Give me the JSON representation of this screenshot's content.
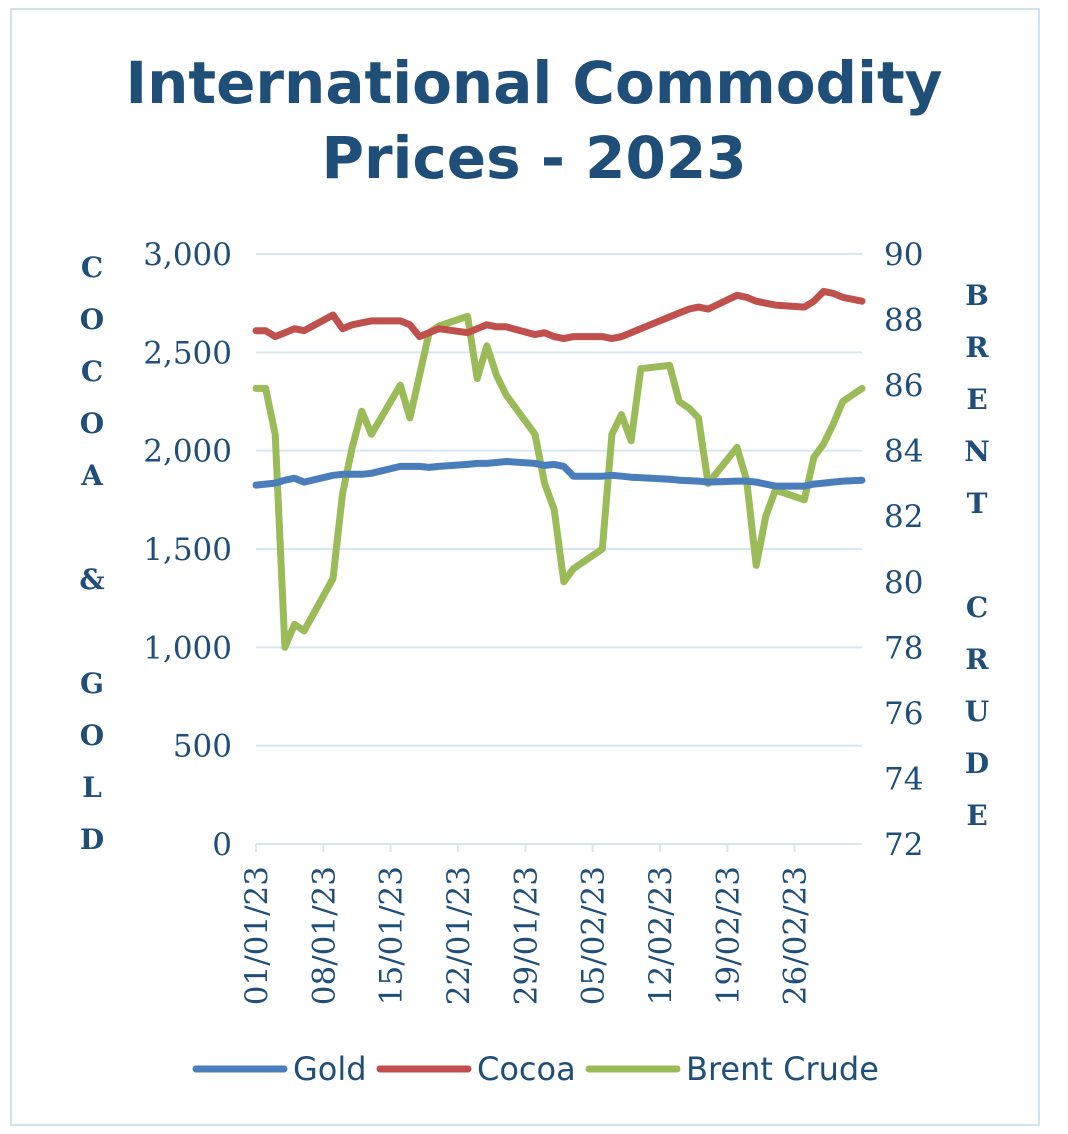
{
  "chart_data": {
    "type": "line",
    "title": "International Commodity Prices - 2023",
    "title_lines": [
      "International Commodity",
      "Prices - 2023"
    ],
    "ylabel": "COCOA & GOLD",
    "y2label": "BRENT CRUDE",
    "ylim": [
      0,
      3000
    ],
    "y2lim": [
      72,
      90
    ],
    "yticks": [
      "0",
      "500",
      "1,000",
      "1,500",
      "2,000",
      "2,500",
      "3,000"
    ],
    "y2ticks": [
      "72",
      "74",
      "76",
      "78",
      "80",
      "82",
      "84",
      "86",
      "88",
      "90"
    ],
    "xlim": [
      "01/01/23",
      "05/03/23"
    ],
    "xticks": [
      "01/01/23",
      "08/01/23",
      "15/01/23",
      "22/01/23",
      "29/01/23",
      "05/02/23",
      "12/02/23",
      "19/02/23",
      "26/02/23"
    ],
    "grid": "horizontal",
    "legend_position": "bottom",
    "series": [
      {
        "name": "Gold",
        "axis": "left",
        "color": "#4a7ebb",
        "x": [
          "01/01/23",
          "02/01/23",
          "03/01/23",
          "04/01/23",
          "05/01/23",
          "06/01/23",
          "09/01/23",
          "10/01/23",
          "12/01/23",
          "13/01/23",
          "16/01/23",
          "18/01/23",
          "19/01/23",
          "20/01/23",
          "23/01/23",
          "24/01/23",
          "25/01/23",
          "26/01/23",
          "27/01/23",
          "30/01/23",
          "31/01/23",
          "01/02/23",
          "02/02/23",
          "03/02/23",
          "06/02/23",
          "07/02/23",
          "08/02/23",
          "09/02/23",
          "13/02/23",
          "14/02/23",
          "16/02/23",
          "17/02/23",
          "20/02/23",
          "21/02/23",
          "22/02/23",
          "24/02/23",
          "27/02/23",
          "28/02/23",
          "01/03/23",
          "02/03/23",
          "03/03/23",
          "05/03/23"
        ],
        "y": [
          1825,
          1830,
          1835,
          1850,
          1860,
          1840,
          1875,
          1880,
          1880,
          1885,
          1920,
          1920,
          1915,
          1920,
          1930,
          1935,
          1935,
          1940,
          1945,
          1935,
          1925,
          1930,
          1920,
          1870,
          1870,
          1875,
          1870,
          1865,
          1855,
          1850,
          1845,
          1840,
          1845,
          1845,
          1840,
          1820,
          1820,
          1830,
          1835,
          1840,
          1845,
          1850
        ]
      },
      {
        "name": "Cocoa",
        "axis": "left",
        "color": "#c0504d",
        "x": [
          "01/01/23",
          "02/01/23",
          "03/01/23",
          "04/01/23",
          "05/01/23",
          "06/01/23",
          "09/01/23",
          "10/01/23",
          "11/01/23",
          "12/01/23",
          "13/01/23",
          "16/01/23",
          "17/01/23",
          "18/01/23",
          "19/01/23",
          "20/01/23",
          "23/01/23",
          "24/01/23",
          "25/01/23",
          "26/01/23",
          "27/01/23",
          "30/01/23",
          "31/01/23",
          "01/02/23",
          "02/02/23",
          "03/02/23",
          "06/02/23",
          "07/02/23",
          "08/02/23",
          "09/02/23",
          "10/02/23",
          "13/02/23",
          "14/02/23",
          "15/02/23",
          "16/02/23",
          "17/02/23",
          "20/02/23",
          "21/02/23",
          "22/02/23",
          "23/02/23",
          "24/02/23",
          "27/02/23",
          "28/02/23",
          "01/03/23",
          "02/03/23",
          "03/03/23",
          "05/03/23"
        ],
        "y": [
          2610,
          2610,
          2580,
          2600,
          2620,
          2610,
          2690,
          2620,
          2640,
          2650,
          2660,
          2660,
          2640,
          2580,
          2600,
          2620,
          2600,
          2620,
          2640,
          2630,
          2630,
          2590,
          2600,
          2580,
          2570,
          2580,
          2580,
          2570,
          2580,
          2600,
          2620,
          2680,
          2700,
          2720,
          2730,
          2720,
          2790,
          2780,
          2760,
          2750,
          2740,
          2730,
          2760,
          2810,
          2800,
          2780,
          2760
        ]
      },
      {
        "name": "Brent Crude",
        "axis": "right",
        "color": "#9bbb59",
        "x": [
          "01/01/23",
          "02/01/23",
          "03/01/23",
          "04/01/23",
          "05/01/23",
          "06/01/23",
          "09/01/23",
          "10/01/23",
          "11/01/23",
          "12/01/23",
          "13/01/23",
          "16/01/23",
          "17/01/23",
          "18/01/23",
          "19/01/23",
          "20/01/23",
          "23/01/23",
          "24/01/23",
          "25/01/23",
          "26/01/23",
          "27/01/23",
          "30/01/23",
          "31/01/23",
          "01/02/23",
          "02/02/23",
          "03/02/23",
          "06/02/23",
          "07/02/23",
          "08/02/23",
          "09/02/23",
          "10/02/23",
          "13/02/23",
          "14/02/23",
          "15/02/23",
          "16/02/23",
          "17/02/23",
          "20/02/23",
          "21/02/23",
          "22/02/23",
          "23/02/23",
          "24/02/23",
          "27/02/23",
          "28/02/23",
          "01/03/23",
          "02/03/23",
          "03/03/23",
          "05/03/23"
        ],
        "y": [
          85.9,
          85.9,
          84.5,
          78.0,
          78.7,
          78.5,
          80.1,
          82.7,
          84.1,
          85.2,
          84.5,
          86.0,
          85.0,
          86.3,
          87.6,
          87.8,
          88.1,
          86.2,
          87.2,
          86.3,
          85.7,
          84.5,
          83.0,
          82.2,
          80.0,
          80.4,
          81.0,
          84.5,
          85.1,
          84.3,
          86.5,
          86.6,
          85.5,
          85.3,
          85.0,
          83.0,
          84.1,
          83.1,
          80.5,
          82.0,
          82.8,
          82.5,
          83.8,
          84.2,
          84.8,
          85.5,
          85.9
        ]
      }
    ]
  }
}
